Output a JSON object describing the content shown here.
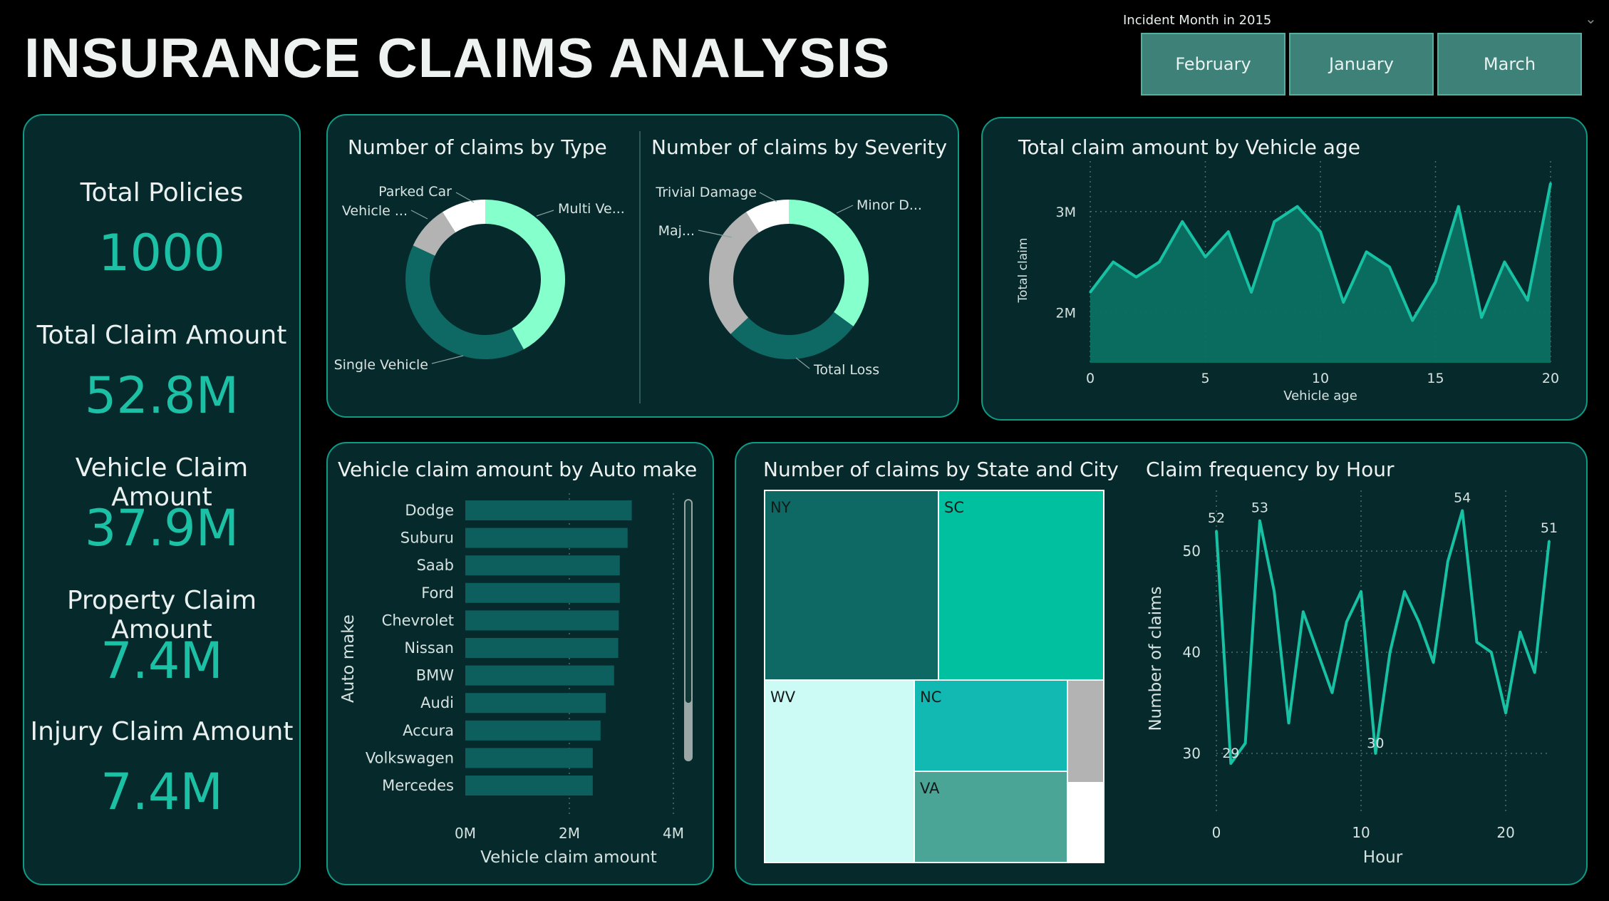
{
  "header": {
    "title": "INSURANCE CLAIMS ANALYSIS"
  },
  "slicer": {
    "title": "Incident Month in 2015",
    "options": [
      "February",
      "January",
      "March"
    ],
    "chevron_icon": "chevron-down-icon"
  },
  "kpis": [
    {
      "label": "Total Policies",
      "value": "1000"
    },
    {
      "label": "Total Claim Amount",
      "value": "52.8M"
    },
    {
      "label": "Vehicle Claim Amount",
      "value": "37.9M"
    },
    {
      "label": "Property Claim Amount",
      "value": "7.4M"
    },
    {
      "label": "Injury Claim Amount",
      "value": "7.4M"
    }
  ],
  "colors": {
    "accent": "#1cc0a5",
    "card_bg": "#062a2c",
    "card_border": "#0f9a86",
    "page_bg": "#000000"
  },
  "chart_data": [
    {
      "type": "pie",
      "title": "Number of claims by Type",
      "slices": [
        {
          "label": "Multi Ve...",
          "value": 42,
          "color": "#85ffcc"
        },
        {
          "label": "Single Vehicle",
          "value": 40,
          "color": "#0e6864"
        },
        {
          "label": "Vehicle ...",
          "value": 9,
          "color": "#b3b3b3"
        },
        {
          "label": "Parked Car",
          "value": 9,
          "color": "#ffffff"
        }
      ]
    },
    {
      "type": "pie",
      "title": "Number of claims by Severity",
      "slices": [
        {
          "label": "Minor D...",
          "value": 35,
          "color": "#85ffcc"
        },
        {
          "label": "Total Loss",
          "value": 28,
          "color": "#0e6864"
        },
        {
          "label": "Maj...",
          "value": 28,
          "color": "#b3b3b3"
        },
        {
          "label": "Trivial Damage",
          "value": 9,
          "color": "#ffffff"
        }
      ]
    },
    {
      "type": "area",
      "title": "Total claim amount by Vehicle age",
      "xlabel": "Vehicle age",
      "ylabel": "Total claim",
      "x": [
        0,
        1,
        2,
        3,
        4,
        5,
        6,
        7,
        8,
        9,
        10,
        11,
        12,
        13,
        14,
        15,
        16,
        17,
        18,
        19,
        20
      ],
      "values": [
        2.2,
        2.5,
        2.35,
        2.5,
        2.9,
        2.55,
        2.8,
        2.2,
        2.9,
        3.05,
        2.8,
        2.1,
        2.6,
        2.45,
        1.92,
        2.3,
        3.05,
        1.95,
        2.5,
        2.12,
        3.28
      ],
      "xticks": [
        "0",
        "5",
        "10",
        "15",
        "20"
      ],
      "yticks": [
        "2M",
        "3M"
      ],
      "xlim": [
        0,
        20
      ],
      "ylim": [
        1.5,
        3.5
      ],
      "grid": true
    },
    {
      "type": "bar",
      "title": "Vehicle claim amount by Auto make",
      "xlabel": "Vehicle claim amount",
      "ylabel": "Auto make",
      "categories": [
        "Dodge",
        "Suburu",
        "Saab",
        "Ford",
        "Chevrolet",
        "Nissan",
        "BMW",
        "Audi",
        "Accura",
        "Volkswagen",
        "Mercedes"
      ],
      "values": [
        3.2,
        3.12,
        2.97,
        2.97,
        2.95,
        2.94,
        2.86,
        2.7,
        2.6,
        2.45,
        2.45
      ],
      "xticks": [
        "0M",
        "2M",
        "4M"
      ],
      "xlim": [
        0,
        4
      ],
      "grid": true
    },
    {
      "type": "heatmap",
      "title": "Number of claims by State and City",
      "cells": [
        {
          "label": "NY",
          "color": "#0e6864"
        },
        {
          "label": "SC",
          "color": "#01c0a0"
        },
        {
          "label": "WV",
          "color": "#ccfbf5"
        },
        {
          "label": "NC",
          "color": "#12b8b2"
        },
        {
          "label": "VA",
          "color": "#4aa596"
        },
        {
          "label": "",
          "color": "#b3b3b3"
        },
        {
          "label": "",
          "color": "#ffffff"
        }
      ]
    },
    {
      "type": "line",
      "title": "Claim frequency by Hour",
      "xlabel": "Hour",
      "ylabel": "Number of claims",
      "x": [
        0,
        1,
        2,
        3,
        4,
        5,
        6,
        7,
        8,
        9,
        10,
        11,
        12,
        13,
        14,
        15,
        16,
        17,
        18,
        19,
        20,
        21,
        22,
        23
      ],
      "values": [
        52,
        29,
        31,
        53,
        46,
        33,
        44,
        40,
        36,
        43,
        46,
        30,
        40,
        46,
        43,
        39,
        49,
        54,
        41,
        40,
        34,
        42,
        38,
        51
      ],
      "data_labels": [
        {
          "x": 0,
          "text": "52"
        },
        {
          "x": 1,
          "text": "29"
        },
        {
          "x": 3,
          "text": "53"
        },
        {
          "x": 11,
          "text": "30"
        },
        {
          "x": 17,
          "text": "54"
        },
        {
          "x": 23,
          "text": "51"
        }
      ],
      "xticks": [
        "0",
        "10",
        "20"
      ],
      "yticks": [
        "30",
        "40",
        "50"
      ],
      "xlim": [
        0,
        23
      ],
      "ylim": [
        24,
        56
      ],
      "grid": true
    }
  ]
}
